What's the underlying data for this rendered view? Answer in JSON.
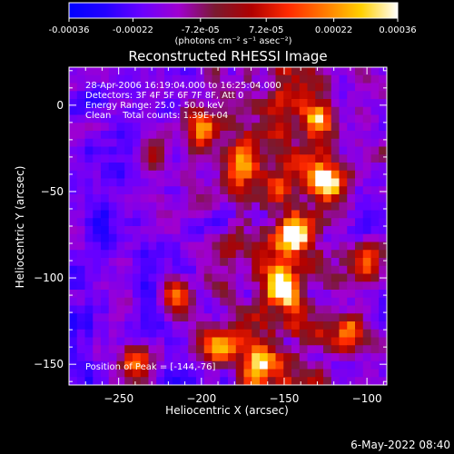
{
  "colorbar": {
    "tick_labels": [
      "-0.00036",
      "-0.00022",
      "-7.2e-05",
      "7.2e-05",
      "0.00022",
      "0.00036"
    ],
    "tick_values": [
      -0.00036,
      -0.00022,
      -7.2e-05,
      7.2e-05,
      0.00022,
      0.00036
    ],
    "range": [
      -0.00036,
      0.00036
    ],
    "unit_label": "(photons cm⁻² s⁻¹ asec⁻²)",
    "colors": [
      "#0000ff",
      "#2400ff",
      "#6a00ff",
      "#a000d0",
      "#7a1a30",
      "#b00000",
      "#ff2a00",
      "#ff7a00",
      "#ffd000",
      "#ffffff"
    ]
  },
  "chart_data": {
    "type": "heatmap",
    "title": "Reconstructed RHESSI Image",
    "xlabel": "Heliocentric X (arcsec)",
    "ylabel": "Heliocentric Y (arcsec)",
    "xlim": [
      -280,
      -88
    ],
    "ylim": [
      -162,
      22
    ],
    "x_ticks": [
      -250,
      -200,
      -150,
      -100
    ],
    "y_ticks": [
      0,
      -50,
      -100,
      -150
    ],
    "x_tick_labels": [
      "−250",
      "−200",
      "−150",
      "−100"
    ],
    "y_tick_labels": [
      "0",
      "−50",
      "−100",
      "−150"
    ],
    "info_lines": [
      "28-Apr-2006 16:19:04.000 to 16:25:04.000",
      "Detectors: 3F 4F 5F 6F 7F 8F, Att 0",
      "Energy Range: 25.0 - 50.0 keV",
      "Clean    Total counts: 1.39E+04"
    ],
    "peak_label": "Position of Peak = [-144,-76]",
    "peak_position": [
      -144,
      -76
    ],
    "grid_cols": 40,
    "grid_rows": 40,
    "hotspots": [
      {
        "x": -145,
        "y": -76,
        "amp": 1.0
      },
      {
        "x": -125,
        "y": -45,
        "amp": 0.9
      },
      {
        "x": -150,
        "y": -105,
        "amp": 0.85
      },
      {
        "x": -175,
        "y": -35,
        "amp": 0.8
      },
      {
        "x": -200,
        "y": -15,
        "amp": 0.75
      },
      {
        "x": -110,
        "y": -130,
        "amp": 0.7
      },
      {
        "x": -190,
        "y": -140,
        "amp": 0.8
      },
      {
        "x": -230,
        "y": -30,
        "amp": 0.55
      },
      {
        "x": -215,
        "y": -110,
        "amp": 0.7
      },
      {
        "x": -165,
        "y": -150,
        "amp": 0.65
      },
      {
        "x": -130,
        "y": -10,
        "amp": 0.7
      },
      {
        "x": -240,
        "y": -150,
        "amp": 0.6
      },
      {
        "x": -100,
        "y": -90,
        "amp": 0.5
      }
    ]
  },
  "footer": {
    "timestamp": "6-May-2022 08:40"
  }
}
